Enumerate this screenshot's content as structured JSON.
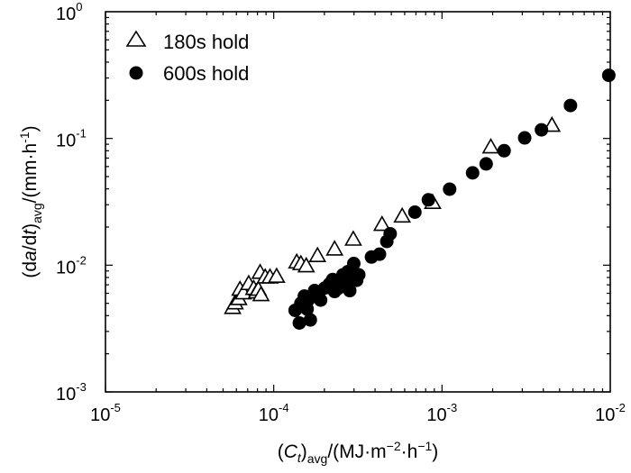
{
  "chart_data": {
    "type": "scatter",
    "title": "",
    "xscale": "log",
    "yscale": "log",
    "xlim": [
      1e-05,
      0.01
    ],
    "ylim": [
      0.001,
      1
    ],
    "grid": false,
    "legend_position": "top-left",
    "xlabel": {
      "parts": [
        "(",
        "C",
        "t",
        ")",
        "avg",
        "/(MJ·m",
        "−2",
        "·h",
        "−1",
        ")"
      ]
    },
    "ylabel": {
      "parts": [
        "(d",
        "a",
        "/d",
        "t",
        ")",
        "avg",
        "/(mm·h",
        "-1",
        ")"
      ]
    },
    "xticks": [
      {
        "value": 1e-05,
        "base": "10",
        "exp": "-5"
      },
      {
        "value": 0.0001,
        "base": "10",
        "exp": "-4"
      },
      {
        "value": 0.001,
        "base": "10",
        "exp": "-3"
      },
      {
        "value": 0.01,
        "base": "10",
        "exp": "-2"
      }
    ],
    "yticks": [
      {
        "value": 0.001,
        "base": "10",
        "exp": "-3"
      },
      {
        "value": 0.01,
        "base": "10",
        "exp": "-2"
      },
      {
        "value": 0.1,
        "base": "10",
        "exp": "-1"
      },
      {
        "value": 1,
        "base": "10",
        "exp": "0"
      }
    ],
    "series": [
      {
        "name": "180s hold",
        "marker": "open-triangle",
        "color": "#000000",
        "points": [
          [
            5.7e-05,
            0.0046
          ],
          [
            5.9e-05,
            0.005
          ],
          [
            6.2e-05,
            0.0054
          ],
          [
            6.3e-05,
            0.0064
          ],
          [
            6.6e-05,
            0.006
          ],
          [
            7.1e-05,
            0.0071
          ],
          [
            7.6e-05,
            0.0065
          ],
          [
            7.9e-05,
            0.0061
          ],
          [
            8.1e-05,
            0.0064
          ],
          [
            8.3e-05,
            0.0087
          ],
          [
            8.4e-05,
            0.0058
          ],
          [
            8.9e-05,
            0.008
          ],
          [
            9.5e-05,
            0.008
          ],
          [
            0.000104,
            0.0081
          ],
          [
            0.000137,
            0.0105
          ],
          [
            0.000145,
            0.0102
          ],
          [
            0.000156,
            0.0098
          ],
          [
            0.000182,
            0.0118
          ],
          [
            0.00023,
            0.0133
          ],
          [
            0.000297,
            0.0159
          ],
          [
            0.00044,
            0.0208
          ],
          [
            0.00058,
            0.0242
          ],
          [
            0.00088,
            0.031
          ],
          [
            0.00195,
            0.085
          ],
          [
            0.0045,
            0.126
          ]
        ]
      },
      {
        "name": "600s hold",
        "marker": "filled-circle",
        "color": "#000000",
        "points": [
          [
            0.000134,
            0.0044
          ],
          [
            0.000142,
            0.0035
          ],
          [
            0.000145,
            0.005
          ],
          [
            0.000152,
            0.0057
          ],
          [
            0.000158,
            0.0045
          ],
          [
            0.00016,
            0.0053
          ],
          [
            0.000165,
            0.0037
          ],
          [
            0.000175,
            0.0063
          ],
          [
            0.000185,
            0.0059
          ],
          [
            0.00019,
            0.0053
          ],
          [
            0.000201,
            0.0066
          ],
          [
            0.000214,
            0.0071
          ],
          [
            0.000224,
            0.0077
          ],
          [
            0.00023,
            0.0062
          ],
          [
            0.000243,
            0.0066
          ],
          [
            0.000258,
            0.0084
          ],
          [
            0.000265,
            0.0075
          ],
          [
            0.000276,
            0.0089
          ],
          [
            0.000283,
            0.0063
          ],
          [
            0.000299,
            0.0103
          ],
          [
            0.000311,
            0.0076
          ],
          [
            0.00032,
            0.0084
          ],
          [
            0.000381,
            0.0116
          ],
          [
            0.000425,
            0.0122
          ],
          [
            0.00047,
            0.0154
          ],
          [
            0.000492,
            0.0177
          ],
          [
            0.00069,
            0.0262
          ],
          [
            0.00083,
            0.0328
          ],
          [
            0.00111,
            0.0398
          ],
          [
            0.00152,
            0.0535
          ],
          [
            0.00183,
            0.063
          ],
          [
            0.00234,
            0.08
          ],
          [
            0.0031,
            0.101
          ],
          [
            0.0039,
            0.117
          ],
          [
            0.0058,
            0.182
          ],
          [
            0.0098,
            0.315
          ]
        ]
      }
    ]
  }
}
